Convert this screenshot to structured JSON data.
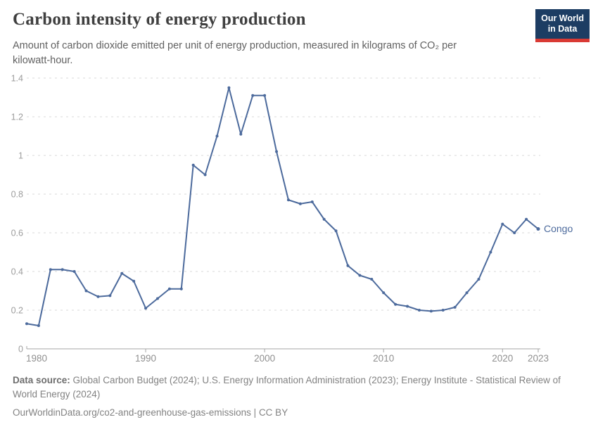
{
  "header": {
    "title": "Carbon intensity of energy production",
    "subtitle": "Amount of carbon dioxide emitted per unit of energy production, measured in kilograms of CO₂ per kilowatt-hour.",
    "logo": {
      "line1": "Our World",
      "line2": "in Data"
    }
  },
  "chart_data": {
    "type": "line",
    "title": "Carbon intensity of energy production",
    "ylabel": "",
    "xlabel": "",
    "ylim": [
      0,
      1.4
    ],
    "yticks": [
      0,
      0.2,
      0.4,
      0.6,
      0.8,
      1,
      1.2,
      1.4
    ],
    "ytick_labels": [
      "0",
      "0.2",
      "0.4",
      "0.6",
      "0.8",
      "1",
      "1.2",
      "1.4"
    ],
    "xticks": [
      1980,
      1990,
      2000,
      2010,
      2020,
      2023
    ],
    "xtick_labels": [
      "1980",
      "1990",
      "2000",
      "2010",
      "2020",
      "2023"
    ],
    "grid": "horizontal-dashed",
    "legend": "end-of-line-label",
    "x": [
      1980,
      1981,
      1982,
      1983,
      1984,
      1985,
      1986,
      1987,
      1988,
      1989,
      1990,
      1991,
      1992,
      1993,
      1994,
      1995,
      1996,
      1997,
      1998,
      1999,
      2000,
      2001,
      2002,
      2003,
      2004,
      2005,
      2006,
      2007,
      2008,
      2009,
      2010,
      2011,
      2012,
      2013,
      2014,
      2015,
      2016,
      2017,
      2018,
      2019,
      2020,
      2021,
      2022,
      2023
    ],
    "series": [
      {
        "name": "Congo",
        "values": [
          0.13,
          0.12,
          0.41,
          0.41,
          0.4,
          0.3,
          0.27,
          0.275,
          0.39,
          0.35,
          0.21,
          0.26,
          0.31,
          0.31,
          0.95,
          0.9,
          1.1,
          1.35,
          1.11,
          1.31,
          1.31,
          1.02,
          0.77,
          0.75,
          0.76,
          0.67,
          0.61,
          0.43,
          0.38,
          0.36,
          0.29,
          0.23,
          0.22,
          0.2,
          0.195,
          0.2,
          0.215,
          0.29,
          0.36,
          0.5,
          0.645,
          0.6,
          0.67,
          0.62
        ]
      }
    ]
  },
  "footer": {
    "datasource_label": "Data source:",
    "datasource_text": " Global Carbon Budget (2024); U.S. Energy Information Administration (2023); Energy Institute - Statistical Review of World Energy (2024)",
    "link_url": "OurWorldinData.org/co2-and-greenhouse-gas-emissions",
    "link_sep": " | ",
    "license": "CC BY"
  },
  "colors": {
    "line": "#4C6A9C",
    "series_label": "#4C6A9C",
    "gridline": "#dadada",
    "axis": "#a5a5a5",
    "logo_bg": "#1d3d63",
    "logo_red": "#d93a34"
  }
}
